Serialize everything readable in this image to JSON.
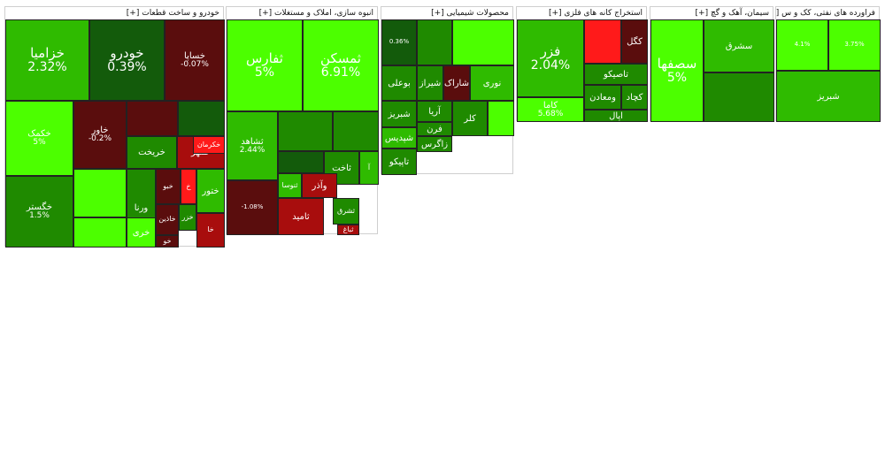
{
  "colors": {
    "strong_up": "#4cff00",
    "up": "#2fbb00",
    "mild_up": "#1f8a00",
    "flat": "#135b0b",
    "mild_down": "#5a0d0d",
    "down": "#a80d0d",
    "strong_down": "#ff1a1a"
  },
  "sectors": [
    {
      "title": "خودرو و ساخت قطعات [+]",
      "tiles": [
        {
          "sym": "خزامیا",
          "pct": "2.32%",
          "c": "up"
        },
        {
          "sym": "خودرو",
          "pct": "0.39%",
          "c": "flat"
        },
        {
          "sym": "خساپا",
          "pct": "-0.07%",
          "c": "mild_down"
        },
        {
          "sym": "خکمک",
          "pct": "5%",
          "c": "strong_up"
        },
        {
          "sym": "خاور",
          "pct": "-0.2%",
          "c": "mild_down"
        },
        {
          "sym": "",
          "pct": "",
          "c": "mild_down"
        },
        {
          "sym": "",
          "pct": "",
          "c": "flat"
        },
        {
          "sym": "خریخت",
          "pct": "",
          "c": "mild_up"
        },
        {
          "sym": "خمهر",
          "pct": "",
          "c": "down"
        },
        {
          "sym": "خکرمان",
          "pct": "",
          "c": "strong_down"
        },
        {
          "sym": "خگستر",
          "pct": "1.5%",
          "c": "mild_up"
        },
        {
          "sym": "",
          "pct": "",
          "c": "strong_up"
        },
        {
          "sym": "ورنا",
          "pct": "",
          "c": "mild_up"
        },
        {
          "sym": "خبو",
          "pct": "",
          "c": "mild_down"
        },
        {
          "sym": "خ",
          "pct": "",
          "c": "strong_down"
        },
        {
          "sym": "ختور",
          "pct": "",
          "c": "up"
        },
        {
          "sym": "خزر",
          "pct": "",
          "c": "mild_up"
        },
        {
          "sym": "خاذین",
          "pct": "",
          "c": "mild_down"
        },
        {
          "sym": "",
          "pct": "",
          "c": "strong_up"
        },
        {
          "sym": "خری",
          "pct": "",
          "c": "strong_up"
        },
        {
          "sym": "خو",
          "pct": "",
          "c": "mild_down"
        },
        {
          "sym": "خا",
          "pct": "",
          "c": "down"
        }
      ]
    },
    {
      "title": "انبوه سازی، املاک و مستغلات [+]",
      "tiles": [
        {
          "sym": "ثفارس",
          "pct": "5%",
          "c": "strong_up"
        },
        {
          "sym": "ثمسکن",
          "pct": "6.91%",
          "c": "strong_up"
        },
        {
          "sym": "ثشاهد",
          "pct": "2.44%",
          "c": "up"
        },
        {
          "sym": "",
          "pct": "",
          "c": "mild_up"
        },
        {
          "sym": "",
          "pct": "",
          "c": "mild_up"
        },
        {
          "sym": "",
          "pct": "",
          "c": "flat"
        },
        {
          "sym": "آ",
          "pct": "",
          "c": "up"
        },
        {
          "sym": "ثاخت",
          "pct": "",
          "c": "mild_up"
        },
        {
          "sym": "وآذر",
          "pct": "",
          "c": "down"
        },
        {
          "sym": "ثنوسا",
          "pct": "",
          "c": "up"
        },
        {
          "sym": "ثامید",
          "pct": "",
          "c": "down"
        },
        {
          "sym": "ثتوسا",
          "pct": "",
          "c": "strong_up"
        },
        {
          "sym": "ثشرق",
          "pct": "",
          "c": "mild_up"
        },
        {
          "sym": "ثباغ",
          "pct": "",
          "c": "down"
        },
        {
          "sym": "",
          "pct": "-1.08%",
          "c": "mild_down"
        }
      ]
    },
    {
      "title": "محصولات شیمیایی [+]",
      "tiles": [
        {
          "sym": "",
          "pct": "0.36%",
          "c": "flat"
        },
        {
          "sym": "",
          "pct": "",
          "c": "mild_up"
        },
        {
          "sym": "",
          "pct": "",
          "c": "strong_up"
        },
        {
          "sym": "بوعلی",
          "pct": "",
          "c": "mild_up"
        },
        {
          "sym": "شیراز",
          "pct": "",
          "c": "mild_up"
        },
        {
          "sym": "شاراک",
          "pct": "",
          "c": "mild_down"
        },
        {
          "sym": "نوری",
          "pct": "",
          "c": "up"
        },
        {
          "sym": "آریا",
          "pct": "",
          "c": "mild_up"
        },
        {
          "sym": "شبریز",
          "pct": "",
          "c": "mild_up"
        },
        {
          "sym": "شپدیس",
          "pct": "",
          "c": "up"
        },
        {
          "sym": "فرن",
          "pct": "",
          "c": "mild_up"
        },
        {
          "sym": "زاگرس",
          "pct": "",
          "c": "mild_up"
        },
        {
          "sym": "تاپیکو",
          "pct": "",
          "c": "mild_up"
        },
        {
          "sym": "کلر",
          "pct": "",
          "c": "mild_up"
        },
        {
          "sym": "",
          "pct": "",
          "c": "strong_up"
        }
      ]
    },
    {
      "title": "استخراج کانه های فلزی [+]",
      "tiles": [
        {
          "sym": "فزر",
          "pct": "2.04%",
          "c": "up"
        },
        {
          "sym": "کگل",
          "pct": "",
          "c": "mild_down"
        },
        {
          "sym": "",
          "pct": "",
          "c": "strong_down"
        },
        {
          "sym": "تاصیکو",
          "pct": "",
          "c": "mild_up"
        },
        {
          "sym": "ومعادن",
          "pct": "",
          "c": "mild_up"
        },
        {
          "sym": "کچاد",
          "pct": "",
          "c": "mild_up"
        },
        {
          "sym": "کاما",
          "pct": "5.68%",
          "c": "strong_up"
        },
        {
          "sym": "اپال",
          "pct": "",
          "c": "mild_up"
        }
      ]
    },
    {
      "title": "سیمان، آهک و گچ [+]",
      "tiles": [
        {
          "sym": "سصفها",
          "pct": "5%",
          "c": "strong_up"
        },
        {
          "sym": "سشرق",
          "pct": "",
          "c": "up"
        },
        {
          "sym": "",
          "pct": "",
          "c": "mild_up"
        }
      ]
    },
    {
      "title": "فراورده های نفتی، کک و س [+]",
      "tiles": [
        {
          "sym": "",
          "pct": "4.1%",
          "c": "strong_up"
        },
        {
          "sym": "",
          "pct": "3.75%",
          "c": "strong_up"
        },
        {
          "sym": "شبریز",
          "pct": "",
          "c": "up"
        }
      ]
    }
  ]
}
